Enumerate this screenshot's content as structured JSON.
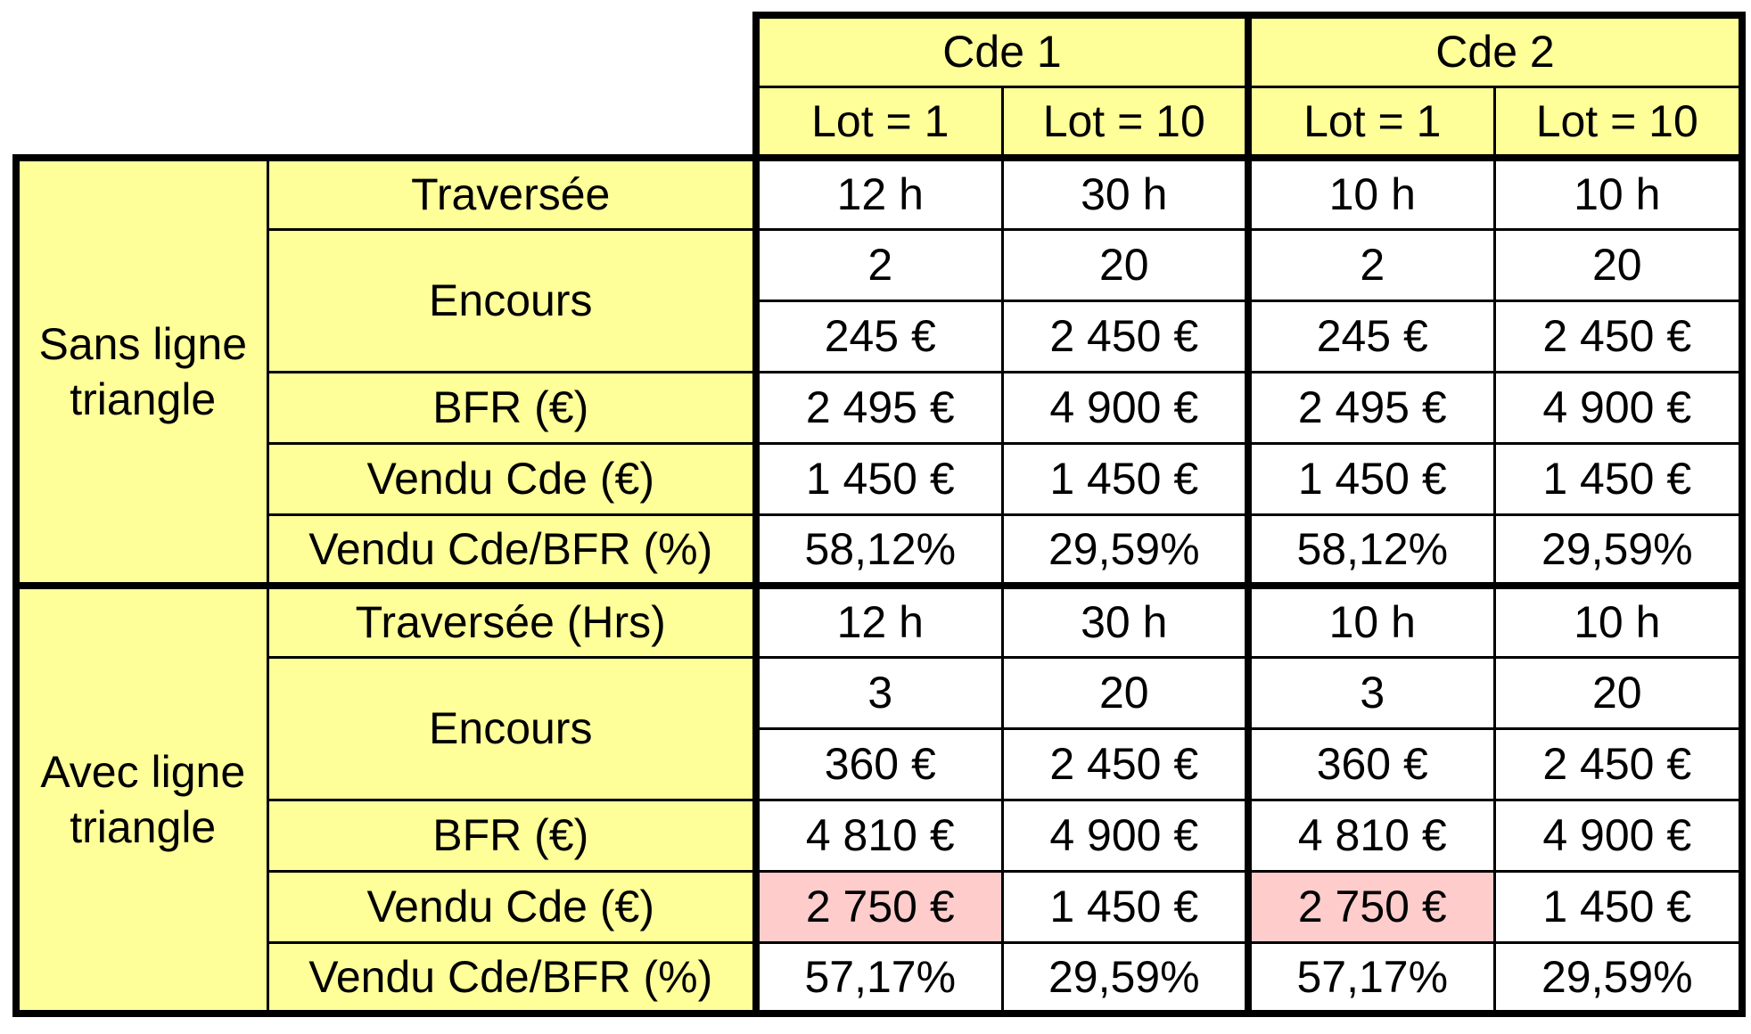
{
  "header": {
    "orders": [
      "Cde 1",
      "Cde 2"
    ],
    "lots": [
      "Lot = 1",
      "Lot = 10",
      "Lot = 1",
      "Lot = 10"
    ]
  },
  "groups": [
    {
      "name_line1": "Sans ligne",
      "name_line2": "triangle",
      "rows": {
        "traversee": {
          "label": "Traversée",
          "values": [
            "12 h",
            "30 h",
            "10 h",
            "10 h"
          ]
        },
        "encours": {
          "label": "Encours",
          "qty": [
            "2",
            "20",
            "2",
            "20"
          ],
          "value": [
            "245 €",
            "2 450 €",
            "245 €",
            "2 450 €"
          ]
        },
        "bfr": {
          "label": "BFR (€)",
          "values": [
            "2 495 €",
            "4 900 €",
            "2 495 €",
            "4 900 €"
          ]
        },
        "vendu": {
          "label": "Vendu Cde (€)",
          "values": [
            "1 450 €",
            "1 450 €",
            "1 450 €",
            "1 450 €"
          ]
        },
        "ratio": {
          "label": "Vendu Cde/BFR (%)",
          "values": [
            "58,12%",
            "29,59%",
            "58,12%",
            "29,59%"
          ]
        }
      }
    },
    {
      "name_line1": "Avec ligne",
      "name_line2": "triangle",
      "rows": {
        "traversee": {
          "label": "Traversée (Hrs)",
          "values": [
            "12 h",
            "30 h",
            "10 h",
            "10 h"
          ]
        },
        "encours": {
          "label": "Encours",
          "qty": [
            "3",
            "20",
            "3",
            "20"
          ],
          "value": [
            "360 €",
            "2 450 €",
            "360 €",
            "2 450 €"
          ]
        },
        "bfr": {
          "label": "BFR (€)",
          "values": [
            "4 810 €",
            "4 900 €",
            "4 810 €",
            "4 900 €"
          ]
        },
        "vendu": {
          "label": "Vendu Cde (€)",
          "values": [
            "2 750 €",
            "1 450 €",
            "2 750 €",
            "1 450 €"
          ]
        },
        "ratio": {
          "label": "Vendu Cde/BFR (%)",
          "values": [
            "57,17%",
            "29,59%",
            "57,17%",
            "29,59%"
          ]
        }
      }
    }
  ],
  "colors": {
    "header_fill": "#ffff99",
    "value_fill": "#ffffff",
    "highlight_fill": "#ffcccc",
    "border": "#000000"
  }
}
